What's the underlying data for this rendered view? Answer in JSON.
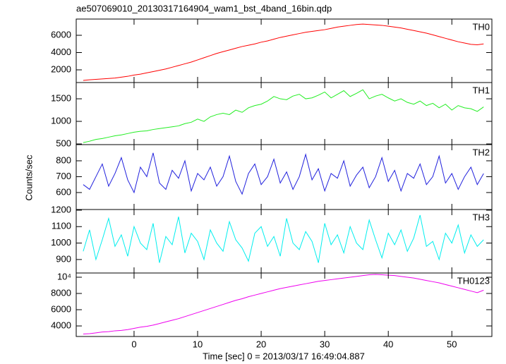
{
  "chart_data": {
    "type": "line",
    "title": "ae507069010_20130317164904_wam1_bst_4band_16bin.qdp",
    "xlabel": "Time [sec] 0 = 2013/03/17 16:49:04.887",
    "ylabel": "Counts/sec",
    "xlim": [
      -9.1,
      56.3
    ],
    "xticks": [
      0,
      10,
      20,
      30,
      40,
      50
    ],
    "x": [
      -8,
      -7,
      -6,
      -5,
      -4,
      -3,
      -2,
      -1,
      0,
      1,
      2,
      3,
      4,
      5,
      6,
      7,
      8,
      9,
      10,
      11,
      12,
      13,
      14,
      15,
      16,
      17,
      18,
      19,
      20,
      21,
      22,
      23,
      24,
      25,
      26,
      27,
      28,
      29,
      30,
      31,
      32,
      33,
      34,
      35,
      36,
      37,
      38,
      39,
      40,
      41,
      42,
      43,
      44,
      45,
      46,
      47,
      48,
      49,
      50,
      51,
      52,
      53,
      54,
      55
    ],
    "panels": [
      {
        "name": "TH0",
        "color": "#ff0000",
        "ylim": [
          530,
          7880
        ],
        "yticks": [
          2000,
          4000,
          6000
        ],
        "values": [
          780,
          850,
          900,
          950,
          1000,
          1050,
          1150,
          1250,
          1400,
          1500,
          1650,
          1800,
          1950,
          2100,
          2300,
          2500,
          2700,
          2900,
          3150,
          3400,
          3650,
          3900,
          4100,
          4300,
          4500,
          4700,
          4850,
          5000,
          5200,
          5350,
          5550,
          5750,
          5900,
          6050,
          6200,
          6350,
          6450,
          6550,
          6650,
          6800,
          6950,
          7050,
          7150,
          7250,
          7300,
          7250,
          7200,
          7150,
          7050,
          6950,
          6850,
          6700,
          6550,
          6400,
          6250,
          6050,
          5850,
          5650,
          5450,
          5250,
          5100,
          4950,
          4900,
          5000
        ]
      },
      {
        "name": "TH1",
        "color": "#22ee22",
        "ylim": [
          485,
          1860
        ],
        "yticks": [
          500,
          1000,
          1500
        ],
        "values": [
          530,
          560,
          600,
          620,
          650,
          680,
          700,
          730,
          760,
          780,
          790,
          820,
          840,
          860,
          880,
          900,
          950,
          980,
          1050,
          1000,
          1100,
          1150,
          1180,
          1150,
          1250,
          1200,
          1300,
          1350,
          1380,
          1450,
          1550,
          1500,
          1480,
          1560,
          1600,
          1500,
          1520,
          1580,
          1650,
          1520,
          1600,
          1680,
          1550,
          1620,
          1700,
          1500,
          1560,
          1600,
          1520,
          1450,
          1500,
          1420,
          1380,
          1450,
          1350,
          1400,
          1300,
          1380,
          1250,
          1350,
          1300,
          1280,
          1220,
          1320
        ]
      },
      {
        "name": "TH2",
        "color": "#2222dd",
        "ylim": [
          493,
          902
        ],
        "yticks": [
          600,
          700,
          800
        ],
        "values": [
          650,
          620,
          700,
          780,
          640,
          720,
          820,
          680,
          600,
          760,
          700,
          850,
          660,
          620,
          740,
          690,
          800,
          610,
          720,
          680,
          760,
          640,
          700,
          830,
          670,
          590,
          720,
          780,
          650,
          700,
          810,
          660,
          730,
          620,
          700,
          840,
          680,
          750,
          610,
          720,
          690,
          800,
          640,
          710,
          760,
          630,
          700,
          820,
          670,
          740,
          610,
          720,
          690,
          780,
          650,
          700,
          830,
          660,
          720,
          620,
          700,
          760,
          650,
          720
        ]
      },
      {
        "name": "TH3",
        "color": "#00eeee",
        "ylim": [
          818,
          1204
        ],
        "yticks": [
          900,
          1000,
          1100,
          1200
        ],
        "values": [
          950,
          1080,
          900,
          1020,
          1150,
          980,
          1050,
          920,
          1100,
          1000,
          960,
          1120,
          880,
          1040,
          990,
          1160,
          940,
          1060,
          1010,
          900,
          1080,
          1000,
          950,
          1130,
          1020,
          970,
          890,
          1060,
          1100,
          980,
          1040,
          920,
          1150,
          1000,
          960,
          1070,
          1010,
          880,
          1120,
          990,
          1050,
          940,
          1100,
          1000,
          960,
          1140,
          1020,
          910,
          1060,
          990,
          1080,
          950,
          1030,
          1170,
          980,
          1010,
          900,
          1060,
          1000,
          1110,
          940,
          1050,
          980,
          1020
        ]
      },
      {
        "name": "TH0123",
        "color": "#ee00ee",
        "ylim": [
          2700,
          10520
        ],
        "yticks": [
          4000,
          6000,
          8000,
          {
            "value": 10000,
            "label": "10⁴"
          }
        ],
        "values": [
          3000,
          3050,
          3150,
          3250,
          3300,
          3400,
          3450,
          3550,
          3700,
          3850,
          3950,
          4100,
          4300,
          4500,
          4700,
          4900,
          5150,
          5400,
          5650,
          5900,
          6150,
          6400,
          6650,
          6900,
          7150,
          7350,
          7600,
          7800,
          8000,
          8200,
          8400,
          8600,
          8750,
          8900,
          9050,
          9200,
          9350,
          9500,
          9600,
          9700,
          9800,
          9900,
          10000,
          10100,
          10200,
          10300,
          10350,
          10300,
          10250,
          10200,
          10100,
          10000,
          9900,
          9750,
          9600,
          9450,
          9300,
          9100,
          8900,
          8700,
          8500,
          8300,
          8100,
          8400
        ]
      }
    ]
  }
}
